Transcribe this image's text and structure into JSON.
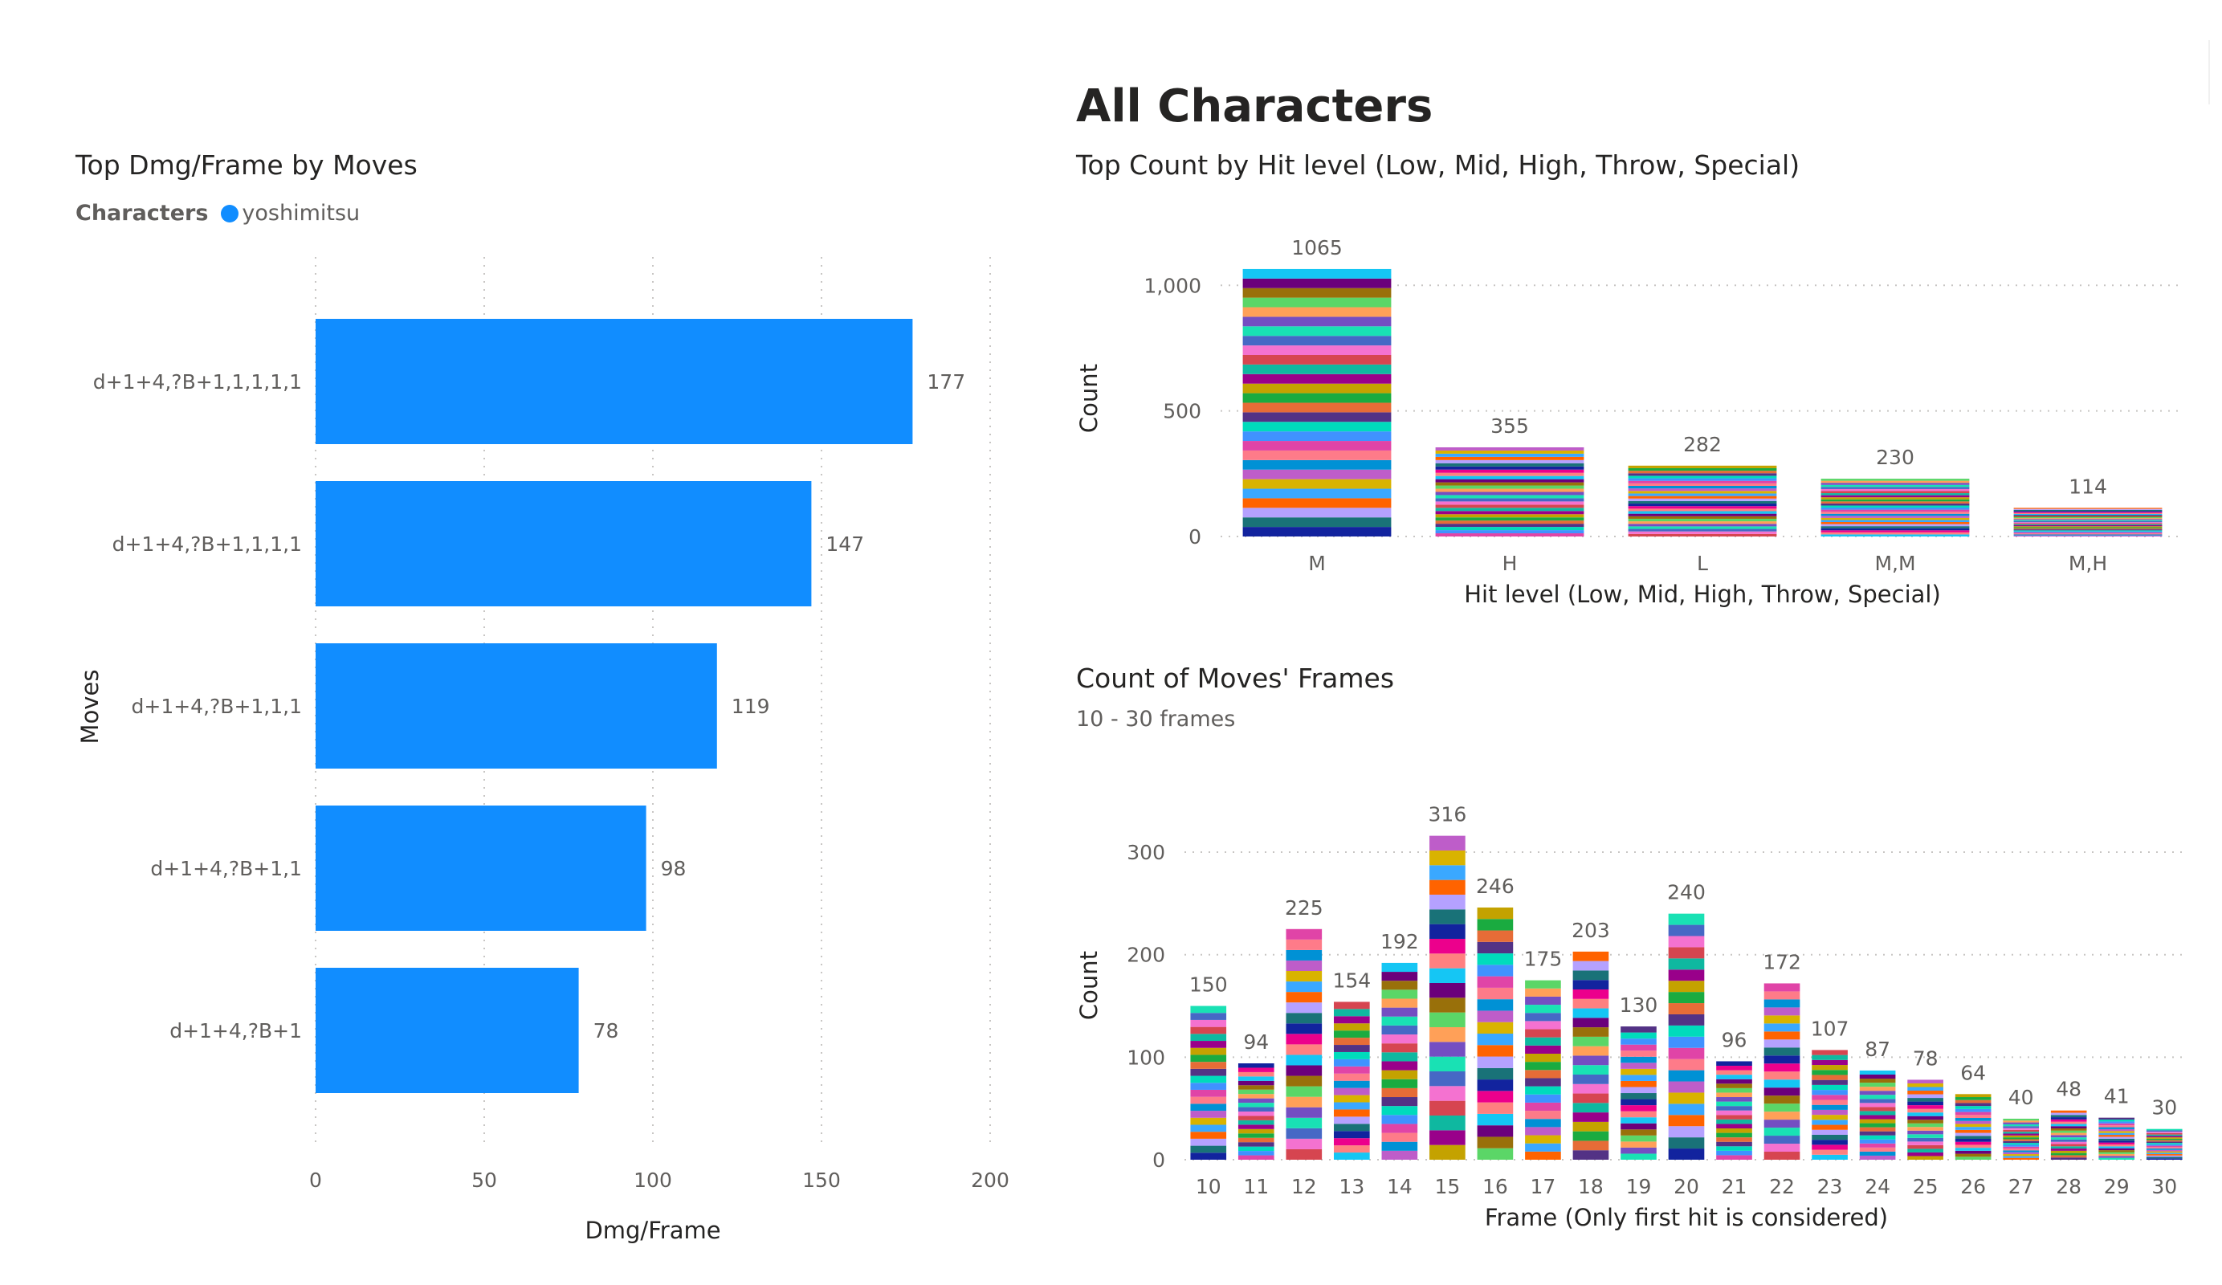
{
  "page_title": "All Characters",
  "colors": {
    "bar": "#118dff",
    "grid": "#c8c6c4",
    "text": "#605e5c",
    "title": "#252423",
    "palette": [
      "#12239e",
      "#e66c37",
      "#6b007b",
      "#e044a7",
      "#744ec2",
      "#d9b300",
      "#d64550",
      "#197278",
      "#1aab40",
      "#15c6f4",
      "#4092ff",
      "#ffa058",
      "#be5dc9",
      "#f472d0",
      "#b5a1ff",
      "#c4a200",
      "#ff8080",
      "#00dbbc",
      "#5bd667",
      "#0091d5",
      "#4668c5",
      "#ff6300",
      "#99008a",
      "#ec008c",
      "#533285",
      "#99700a",
      "#fe7b89",
      "#19e1b4",
      "#3aa8ff",
      "#0fb8a0"
    ]
  },
  "chart_data": [
    {
      "id": "dmg",
      "type": "bar",
      "orientation": "horizontal",
      "title": "Top Dmg/Frame by Moves",
      "legend": {
        "label": "Characters",
        "series_name": "yoshimitsu",
        "position": "top-left"
      },
      "categories": [
        "d+1+4,?B+1,1,1,1,1",
        "d+1+4,?B+1,1,1,1",
        "d+1+4,?B+1,1,1",
        "d+1+4,?B+1,1",
        "d+1+4,?B+1"
      ],
      "values": [
        177,
        147,
        119,
        98,
        78
      ],
      "data_labels": [
        "177",
        "147",
        "119",
        "98",
        "78"
      ],
      "xlabel": "Dmg/Frame",
      "ylabel": "Moves",
      "xlim": [
        0,
        200
      ],
      "xticks": [
        0,
        50,
        100,
        150,
        200
      ],
      "xtick_labels": [
        "0",
        "50",
        "100",
        "150",
        "200"
      ],
      "grid": true
    },
    {
      "id": "hit",
      "type": "bar",
      "stacked": true,
      "title": "Top Count by Hit level (Low, Mid, High, Throw, Special)",
      "categories": [
        "M",
        "H",
        "L",
        "M,M",
        "M,H"
      ],
      "values": [
        1065,
        355,
        282,
        230,
        114
      ],
      "data_labels": [
        "1065",
        "355",
        "282",
        "230",
        "114"
      ],
      "xlabel": "Hit level (Low, Mid, High, Throw, Special)",
      "ylabel": "Count",
      "ylim": [
        0,
        1100
      ],
      "yticks": [
        0,
        500,
        1000
      ],
      "ytick_labels": [
        "0",
        "500",
        "1,000"
      ],
      "grid": true
    },
    {
      "id": "frames",
      "type": "bar",
      "stacked": true,
      "title": "Count of Moves' Frames",
      "subtitle": "10 - 30 frames",
      "categories": [
        "10",
        "11",
        "12",
        "13",
        "14",
        "15",
        "16",
        "17",
        "18",
        "19",
        "20",
        "21",
        "22",
        "23",
        "24",
        "25",
        "26",
        "27",
        "28",
        "29",
        "30"
      ],
      "values": [
        150,
        94,
        225,
        154,
        192,
        316,
        246,
        175,
        203,
        130,
        240,
        96,
        172,
        107,
        87,
        78,
        64,
        40,
        48,
        41,
        30
      ],
      "data_labels": [
        "150",
        "94",
        "225",
        "154",
        "192",
        "316",
        "246",
        "175",
        "203",
        "130",
        "240",
        "96",
        "172",
        "107",
        "87",
        "78",
        "64",
        "40",
        "48",
        "41",
        "30"
      ],
      "xlabel": "Frame (Only first hit is considered)",
      "ylabel": "Count",
      "ylim": [
        0,
        340
      ],
      "yticks": [
        0,
        100,
        200,
        300
      ],
      "ytick_labels": [
        "0",
        "100",
        "200",
        "300"
      ],
      "grid": true
    }
  ]
}
